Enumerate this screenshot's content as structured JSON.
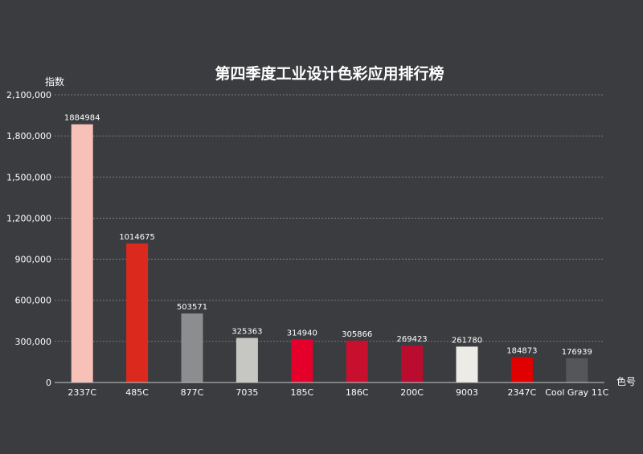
{
  "chart_data": {
    "type": "bar",
    "title": "第四季度工业设计色彩应用排行榜",
    "ylabel": "指数",
    "xlabel": "色号",
    "ylim": [
      0,
      2100000
    ],
    "yticks": [
      0,
      300000,
      600000,
      900000,
      1200000,
      1500000,
      1800000,
      2100000
    ],
    "ytick_labels": [
      "0",
      "300,000",
      "600,000",
      "900,000",
      "1,200,000",
      "1,500,000",
      "1,800,000",
      "2,100,000"
    ],
    "grid": true,
    "categories": [
      "2337C",
      "485C",
      "877C",
      "7035",
      "185C",
      "186C",
      "200C",
      "9003",
      "2347C",
      "Cool Gray 11C"
    ],
    "values": [
      1884984,
      1014675,
      503571,
      325363,
      314940,
      305866,
      269423,
      261780,
      184873,
      176939
    ],
    "value_labels": [
      "1884984",
      "1014675",
      "503571",
      "325363",
      "314940",
      "305866",
      "269423",
      "261780",
      "184873",
      "176939"
    ],
    "colors": [
      "#f8c1b8",
      "#dc291e",
      "#8b8d8e",
      "#c6c6c2",
      "#e4002b",
      "#c8102e",
      "#ba0c2f",
      "#ecebe6",
      "#e00000",
      "#55565a"
    ]
  }
}
